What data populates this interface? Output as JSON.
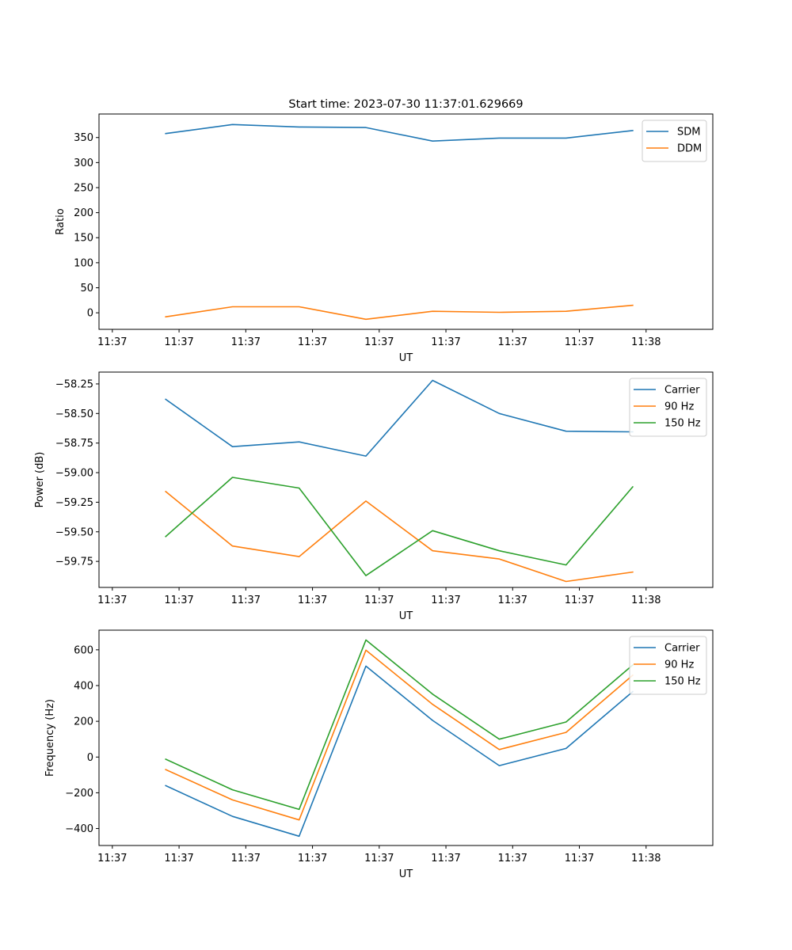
{
  "chart_data": [
    {
      "type": "line",
      "title": "Start time: 2023-07-30 11:37:01.629669",
      "xlabel": "UT",
      "ylabel": "Ratio",
      "xlim": [
        0,
        9.2
      ],
      "ylim": [
        -33,
        397
      ],
      "x_ticks": [
        0.2,
        1.2,
        2.2,
        3.2,
        4.2,
        5.2,
        6.2,
        7.2,
        8.2
      ],
      "x_tick_labels": [
        "11:37",
        "11:37",
        "11:37",
        "11:37",
        "11:37",
        "11:37",
        "11:37",
        "11:37",
        "11:38"
      ],
      "y_ticks": [
        0,
        50,
        100,
        150,
        200,
        250,
        300,
        350
      ],
      "y_tick_labels": [
        "0",
        "50",
        "100",
        "150",
        "200",
        "250",
        "300",
        "350"
      ],
      "x": [
        1,
        2,
        3,
        4,
        5,
        6,
        7,
        8
      ],
      "series": [
        {
          "name": "SDM",
          "color": "#1f77b4",
          "values": [
            358,
            376,
            371,
            370,
            343,
            349,
            349,
            364
          ]
        },
        {
          "name": "DDM",
          "color": "#ff7f0e",
          "values": [
            -8,
            12,
            12,
            -13,
            3,
            1,
            3,
            15
          ]
        }
      ],
      "legend": "top-right"
    },
    {
      "type": "line",
      "title": "",
      "xlabel": "UT",
      "ylabel": "Power (dB)",
      "xlim": [
        0,
        9.2
      ],
      "ylim": [
        -59.97,
        -58.15
      ],
      "x_ticks": [
        0.2,
        1.2,
        2.2,
        3.2,
        4.2,
        5.2,
        6.2,
        7.2,
        8.2
      ],
      "x_tick_labels": [
        "11:37",
        "11:37",
        "11:37",
        "11:37",
        "11:37",
        "11:37",
        "11:37",
        "11:37",
        "11:38"
      ],
      "y_ticks": [
        -58.25,
        -58.5,
        -58.75,
        -59.0,
        -59.25,
        -59.5,
        -59.75
      ],
      "y_tick_labels": [
        "−58.25",
        "−58.50",
        "−58.75",
        "−59.00",
        "−59.25",
        "−59.50",
        "−59.75"
      ],
      "x": [
        1,
        2,
        3,
        4,
        5,
        6,
        7,
        8
      ],
      "series": [
        {
          "name": "Carrier",
          "color": "#1f77b4",
          "values": [
            -58.38,
            -58.78,
            -58.74,
            -58.86,
            -58.22,
            -58.5,
            -58.65,
            -58.655
          ]
        },
        {
          "name": "90 Hz",
          "color": "#ff7f0e",
          "values": [
            -59.16,
            -59.62,
            -59.71,
            -59.24,
            -59.66,
            -59.73,
            -59.92,
            -59.84
          ]
        },
        {
          "name": "150 Hz",
          "color": "#2ca02c",
          "values": [
            -59.54,
            -59.04,
            -59.13,
            -59.87,
            -59.49,
            -59.66,
            -59.78,
            -59.12
          ]
        }
      ],
      "legend": "top-right"
    },
    {
      "type": "line",
      "title": "",
      "xlabel": "UT",
      "ylabel": "Frequency (Hz)",
      "xlim": [
        0,
        9.2
      ],
      "ylim": [
        -495,
        710
      ],
      "x_ticks": [
        0.2,
        1.2,
        2.2,
        3.2,
        4.2,
        5.2,
        6.2,
        7.2,
        8.2
      ],
      "x_tick_labels": [
        "11:37",
        "11:37",
        "11:37",
        "11:37",
        "11:37",
        "11:37",
        "11:37",
        "11:37",
        "11:38"
      ],
      "y_ticks": [
        -400,
        -200,
        0,
        200,
        400,
        600
      ],
      "y_tick_labels": [
        "−400",
        "−200",
        "0",
        "200",
        "400",
        "600"
      ],
      "x": [
        1,
        2,
        3,
        4,
        5,
        6,
        7,
        8
      ],
      "series": [
        {
          "name": "Carrier",
          "color": "#1f77b4",
          "values": [
            -160,
            -332,
            -443,
            509,
            205,
            -48,
            48,
            366
          ]
        },
        {
          "name": "90 Hz",
          "color": "#ff7f0e",
          "values": [
            -70,
            -240,
            -352,
            598,
            295,
            42,
            138,
            458
          ]
        },
        {
          "name": "150 Hz",
          "color": "#2ca02c",
          "values": [
            -12,
            -183,
            -293,
            655,
            352,
            100,
            196,
            515
          ]
        }
      ],
      "legend": "top-right"
    }
  ]
}
